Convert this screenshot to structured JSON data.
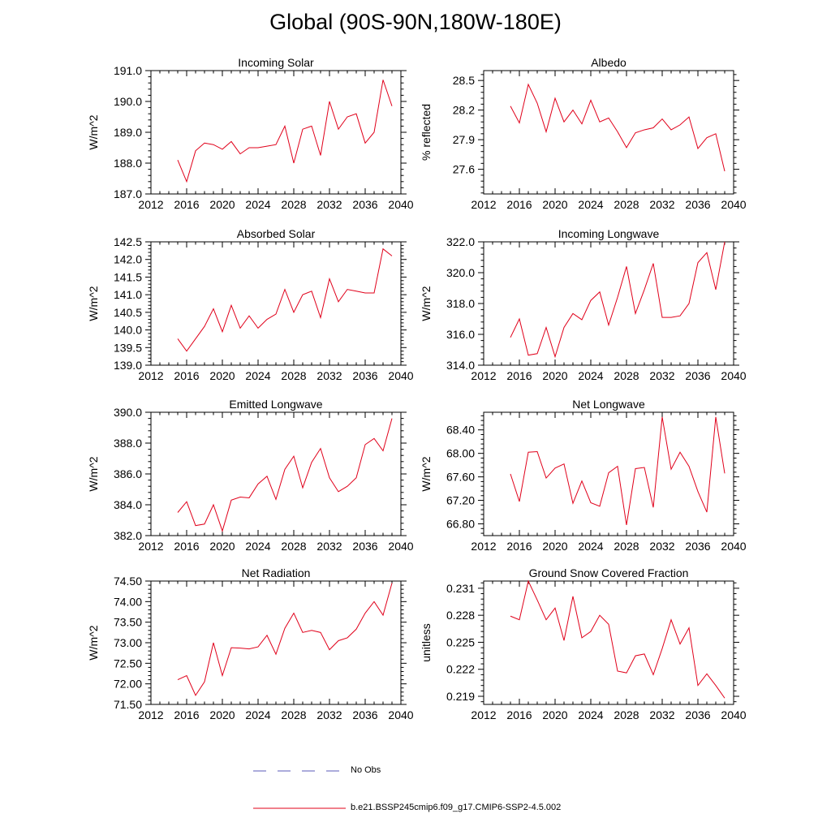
{
  "title": "Global (90S-90N,180W-180E)",
  "legend": [
    {
      "label": "No Obs",
      "color": "#5a5ab8",
      "dash": true
    },
    {
      "label": "b.e21.BSSP245cmip6.f09_g17.CMIP6-SSP2-4.5.002",
      "color": "#e0001a",
      "dash": false
    }
  ],
  "chart_data": [
    {
      "type": "line",
      "title": "Incoming Solar",
      "ylabel": "W/m^2",
      "xlim": [
        2012,
        2040
      ],
      "xticks": [
        2012,
        2016,
        2020,
        2024,
        2028,
        2032,
        2036,
        2040
      ],
      "ylim": [
        187.0,
        191.0
      ],
      "yticks": [
        187.0,
        188.0,
        189.0,
        190.0,
        191.0
      ],
      "ytick_labels": [
        "187.0",
        "188.0",
        "189.0",
        "190.0",
        "191.0"
      ],
      "series": [
        {
          "color": "#e0001a",
          "x": [
            2015,
            2016,
            2017,
            2018,
            2019,
            2020,
            2021,
            2022,
            2023,
            2024,
            2025,
            2026,
            2027,
            2028,
            2029,
            2030,
            2031,
            2032,
            2033,
            2034,
            2035,
            2036,
            2037,
            2038,
            2039
          ],
          "values": [
            188.1,
            187.4,
            188.4,
            188.65,
            188.6,
            188.45,
            188.7,
            188.3,
            188.5,
            188.5,
            188.55,
            188.6,
            189.2,
            188.0,
            189.1,
            189.2,
            188.25,
            190.0,
            189.1,
            189.5,
            189.6,
            188.65,
            189.0,
            190.7,
            189.85
          ]
        }
      ]
    },
    {
      "type": "line",
      "title": "Albedo",
      "ylabel": "% reflected",
      "xlim": [
        2012,
        2040
      ],
      "xticks": [
        2012,
        2016,
        2020,
        2024,
        2028,
        2032,
        2036,
        2040
      ],
      "ylim": [
        27.35,
        28.6
      ],
      "yticks": [
        27.6,
        27.9,
        28.2,
        28.5
      ],
      "ytick_labels": [
        "27.6",
        "27.9",
        "28.2",
        "28.5"
      ],
      "series": [
        {
          "color": "#e0001a",
          "x": [
            2015,
            2016,
            2017,
            2018,
            2019,
            2020,
            2021,
            2022,
            2023,
            2024,
            2025,
            2026,
            2027,
            2028,
            2029,
            2030,
            2031,
            2032,
            2033,
            2034,
            2035,
            2036,
            2037,
            2038,
            2039
          ],
          "values": [
            28.24,
            28.07,
            28.46,
            28.27,
            27.98,
            28.32,
            28.08,
            28.2,
            28.06,
            28.3,
            28.08,
            28.12,
            27.98,
            27.82,
            27.97,
            28.0,
            28.02,
            28.11,
            28.0,
            28.05,
            28.13,
            27.81,
            27.92,
            27.96,
            27.58
          ]
        }
      ]
    },
    {
      "type": "line",
      "title": "Absorbed Solar",
      "ylabel": "W/m^2",
      "xlim": [
        2012,
        2040
      ],
      "xticks": [
        2012,
        2016,
        2020,
        2024,
        2028,
        2032,
        2036,
        2040
      ],
      "ylim": [
        139.0,
        142.5
      ],
      "yticks": [
        139.0,
        139.5,
        140.0,
        140.5,
        141.0,
        141.5,
        142.0,
        142.5
      ],
      "ytick_labels": [
        "139.0",
        "139.5",
        "140.0",
        "140.5",
        "141.0",
        "141.5",
        "142.0",
        "142.5"
      ],
      "series": [
        {
          "color": "#e0001a",
          "x": [
            2015,
            2016,
            2017,
            2018,
            2019,
            2020,
            2021,
            2022,
            2023,
            2024,
            2025,
            2026,
            2027,
            2028,
            2029,
            2030,
            2031,
            2032,
            2033,
            2034,
            2035,
            2036,
            2037,
            2038,
            2039
          ],
          "values": [
            139.75,
            139.4,
            139.75,
            140.1,
            140.6,
            139.95,
            140.7,
            140.05,
            140.4,
            140.05,
            140.3,
            140.45,
            141.15,
            140.5,
            141.0,
            141.1,
            140.35,
            141.45,
            140.8,
            141.15,
            141.1,
            141.05,
            141.05,
            142.3,
            142.1
          ]
        }
      ]
    },
    {
      "type": "line",
      "title": "Incoming Longwave",
      "ylabel": "W/m^2",
      "xlim": [
        2012,
        2040
      ],
      "xticks": [
        2012,
        2016,
        2020,
        2024,
        2028,
        2032,
        2036,
        2040
      ],
      "ylim": [
        314.0,
        322.0
      ],
      "yticks": [
        314.0,
        316.0,
        318.0,
        320.0,
        322.0
      ],
      "ytick_labels": [
        "314.0",
        "316.0",
        "318.0",
        "320.0",
        "322.0"
      ],
      "series": [
        {
          "color": "#e0001a",
          "x": [
            2015,
            2016,
            2017,
            2018,
            2019,
            2020,
            2021,
            2022,
            2023,
            2024,
            2025,
            2026,
            2027,
            2028,
            2029,
            2030,
            2031,
            2032,
            2033,
            2034,
            2035,
            2036,
            2037,
            2038,
            2039
          ],
          "values": [
            315.8,
            317.0,
            314.65,
            314.75,
            316.45,
            314.55,
            316.45,
            317.35,
            316.95,
            318.2,
            318.75,
            316.6,
            318.4,
            320.4,
            317.35,
            318.9,
            320.6,
            317.1,
            317.1,
            317.2,
            318.0,
            320.65,
            321.3,
            318.9,
            322.0
          ]
        }
      ]
    },
    {
      "type": "line",
      "title": "Emitted Longwave",
      "ylabel": "W/m^2",
      "xlim": [
        2012,
        2040
      ],
      "xticks": [
        2012,
        2016,
        2020,
        2024,
        2028,
        2032,
        2036,
        2040
      ],
      "ylim": [
        382.0,
        390.0
      ],
      "yticks": [
        382.0,
        384.0,
        386.0,
        388.0,
        390.0
      ],
      "ytick_labels": [
        "382.0",
        "384.0",
        "386.0",
        "388.0",
        "390.0"
      ],
      "series": [
        {
          "color": "#e0001a",
          "x": [
            2015,
            2016,
            2017,
            2018,
            2019,
            2020,
            2021,
            2022,
            2023,
            2024,
            2025,
            2026,
            2027,
            2028,
            2029,
            2030,
            2031,
            2032,
            2033,
            2034,
            2035,
            2036,
            2037,
            2038,
            2039
          ],
          "values": [
            383.5,
            384.2,
            382.65,
            382.75,
            384.0,
            382.3,
            384.3,
            384.5,
            384.45,
            385.35,
            385.85,
            384.35,
            386.3,
            387.15,
            385.1,
            386.75,
            387.65,
            385.75,
            384.85,
            385.2,
            385.75,
            387.9,
            388.3,
            387.5,
            389.6
          ]
        }
      ]
    },
    {
      "type": "line",
      "title": "Net Longwave",
      "ylabel": "W/m^2",
      "xlim": [
        2012,
        2040
      ],
      "xticks": [
        2012,
        2016,
        2020,
        2024,
        2028,
        2032,
        2036,
        2040
      ],
      "ylim": [
        66.6,
        68.7
      ],
      "yticks": [
        66.8,
        67.2,
        67.6,
        68.0,
        68.4
      ],
      "ytick_labels": [
        "66.80",
        "67.20",
        "67.60",
        "68.00",
        "68.40"
      ],
      "series": [
        {
          "color": "#e0001a",
          "x": [
            2015,
            2016,
            2017,
            2018,
            2019,
            2020,
            2021,
            2022,
            2023,
            2024,
            2025,
            2026,
            2027,
            2028,
            2029,
            2030,
            2031,
            2032,
            2033,
            2034,
            2035,
            2036,
            2037,
            2038,
            2039
          ],
          "values": [
            67.65,
            67.18,
            68.02,
            68.03,
            67.58,
            67.75,
            67.82,
            67.15,
            67.53,
            67.16,
            67.1,
            67.67,
            67.78,
            66.78,
            67.74,
            67.76,
            67.08,
            68.62,
            67.73,
            68.02,
            67.78,
            67.35,
            67.0,
            68.62,
            67.66
          ]
        }
      ]
    },
    {
      "type": "line",
      "title": "Net Radiation",
      "ylabel": "W/m^2",
      "xlim": [
        2012,
        2040
      ],
      "xticks": [
        2012,
        2016,
        2020,
        2024,
        2028,
        2032,
        2036,
        2040
      ],
      "ylim": [
        71.5,
        74.5
      ],
      "yticks": [
        71.5,
        72.0,
        72.5,
        73.0,
        73.5,
        74.0,
        74.5
      ],
      "ytick_labels": [
        "71.50",
        "72.00",
        "72.50",
        "73.00",
        "73.50",
        "74.00",
        "74.50"
      ],
      "series": [
        {
          "color": "#e0001a",
          "x": [
            2015,
            2016,
            2017,
            2018,
            2019,
            2020,
            2021,
            2022,
            2023,
            2024,
            2025,
            2026,
            2027,
            2028,
            2029,
            2030,
            2031,
            2032,
            2033,
            2034,
            2035,
            2036,
            2037,
            2038,
            2039
          ],
          "values": [
            72.1,
            72.2,
            71.72,
            72.05,
            73.0,
            72.2,
            72.88,
            72.87,
            72.85,
            72.9,
            73.18,
            72.72,
            73.35,
            73.72,
            73.25,
            73.3,
            73.25,
            72.83,
            73.05,
            73.12,
            73.33,
            73.72,
            74.0,
            73.67,
            74.45
          ]
        }
      ]
    },
    {
      "type": "line",
      "title": "Ground Snow Covered Fraction",
      "ylabel": "unitless",
      "xlim": [
        2012,
        2040
      ],
      "xticks": [
        2012,
        2016,
        2020,
        2024,
        2028,
        2032,
        2036,
        2040
      ],
      "ylim": [
        0.2181,
        0.2318
      ],
      "yticks": [
        0.219,
        0.222,
        0.225,
        0.228,
        0.231
      ],
      "ytick_labels": [
        "0.219",
        "0.222",
        "0.225",
        "0.228",
        "0.231"
      ],
      "series": [
        {
          "color": "#e0001a",
          "x": [
            2015,
            2016,
            2017,
            2018,
            2019,
            2020,
            2021,
            2022,
            2023,
            2024,
            2025,
            2026,
            2027,
            2028,
            2029,
            2030,
            2031,
            2032,
            2033,
            2034,
            2035,
            2036,
            2037,
            2038,
            2039
          ],
          "values": [
            0.2279,
            0.2275,
            0.2318,
            0.2297,
            0.2275,
            0.2288,
            0.2252,
            0.2301,
            0.2255,
            0.2262,
            0.228,
            0.227,
            0.2218,
            0.2216,
            0.2235,
            0.2237,
            0.2214,
            0.2243,
            0.2275,
            0.2248,
            0.2266,
            0.2202,
            0.2215,
            0.2202,
            0.2188
          ]
        }
      ]
    }
  ]
}
